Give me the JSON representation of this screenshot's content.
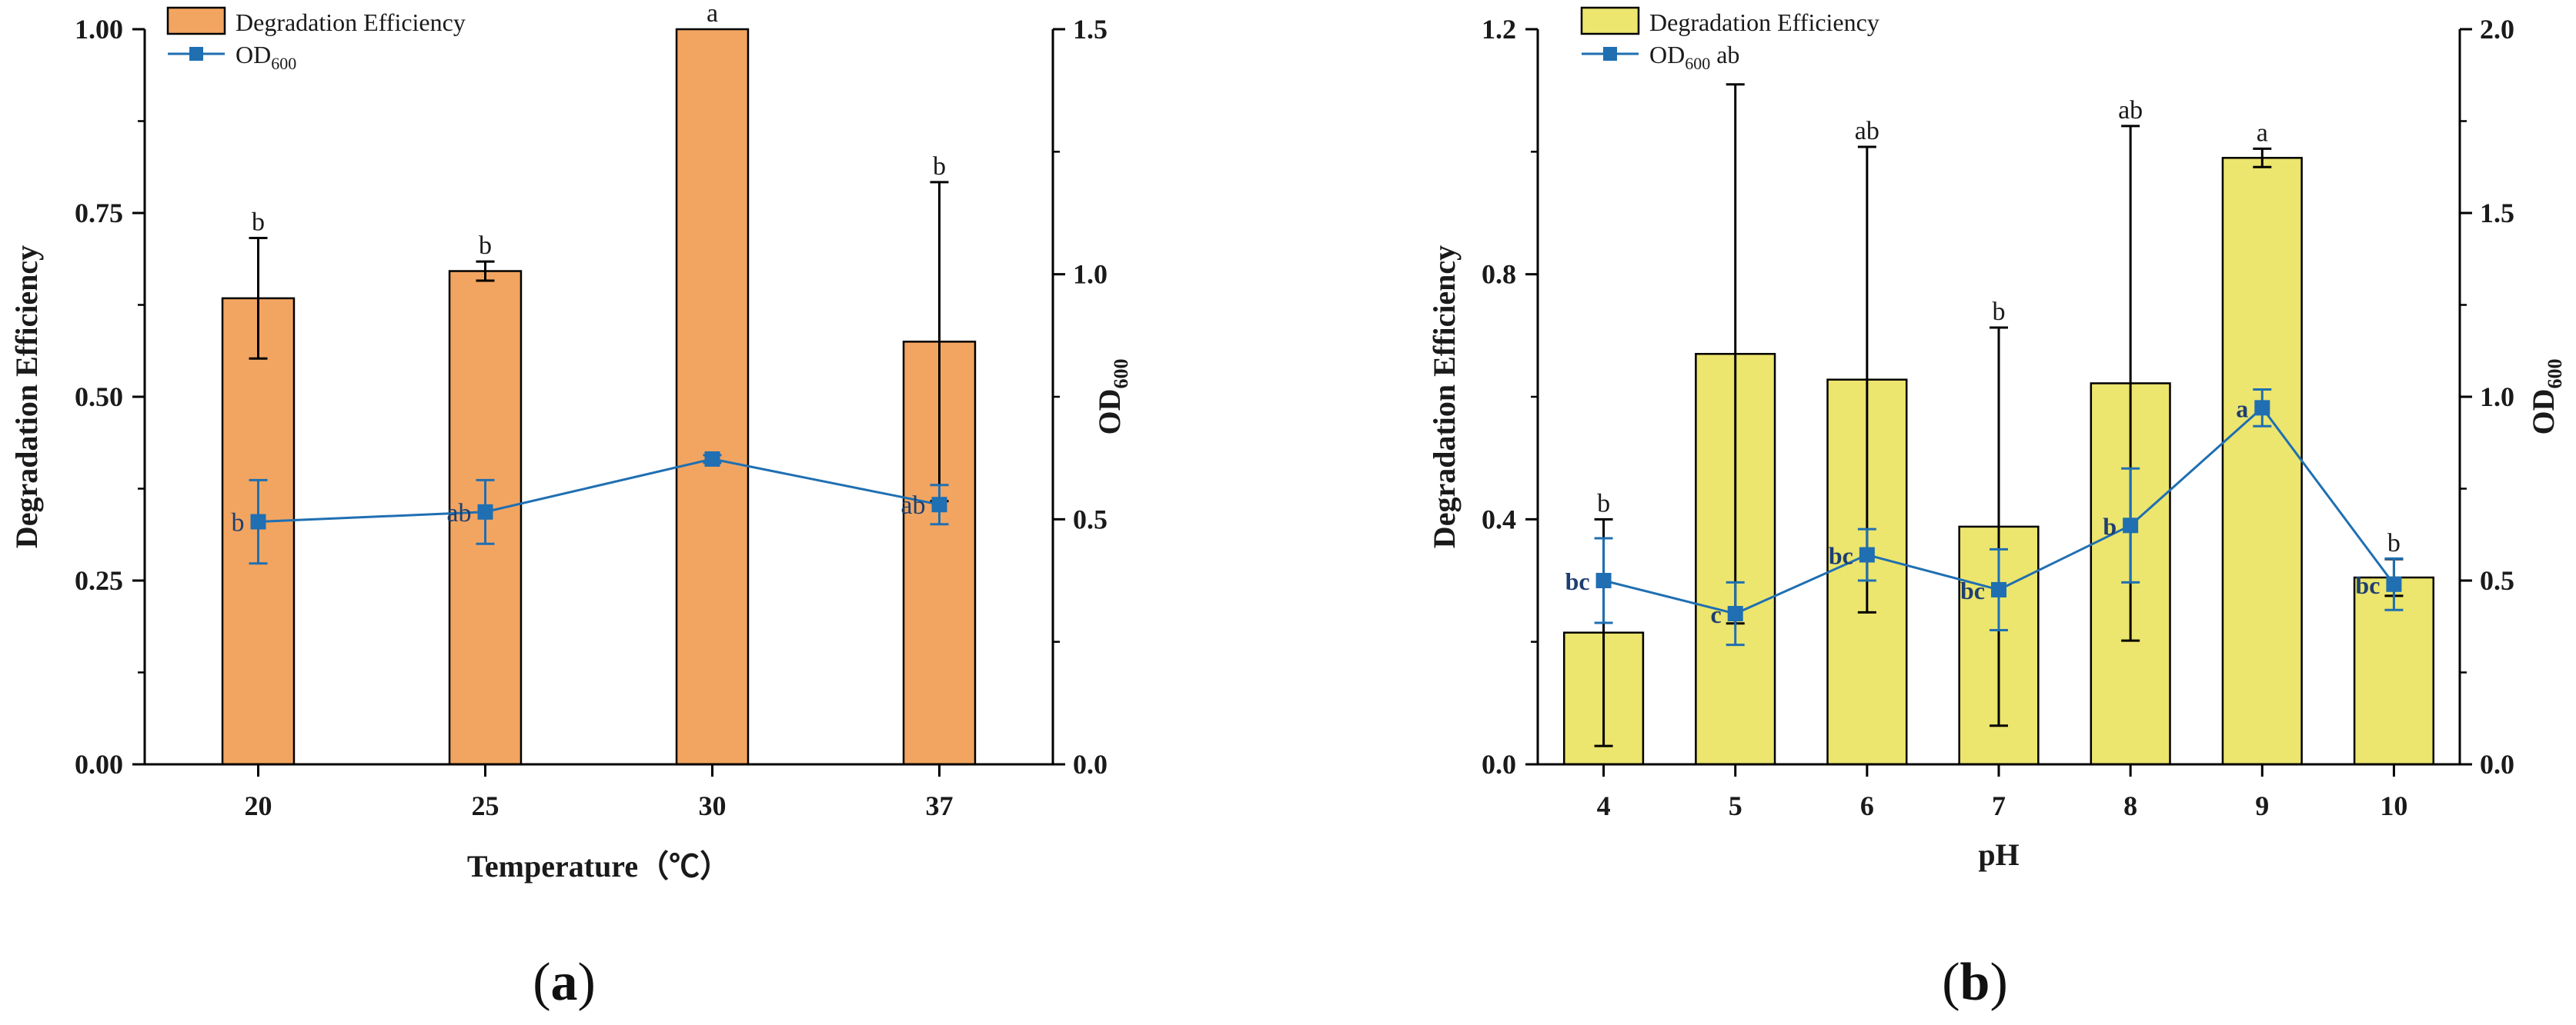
{
  "chart_data": [
    {
      "type": "bar",
      "panel_label": "a",
      "xlabel": "Temperature（℃）",
      "ylabel": "Degradation Efficiency",
      "y2label": "OD",
      "y2label_sub": "600",
      "categories": [
        "20",
        "25",
        "30",
        "37"
      ],
      "ylim": [
        0,
        1.0
      ],
      "yticks": [
        "0.00",
        "0.25",
        "0.50",
        "0.75",
        "1.00"
      ],
      "y2lim": [
        0,
        1.5
      ],
      "y2ticks": [
        "0.0",
        "0.5",
        "1.0",
        "1.5"
      ],
      "bar_color": "#f2a561",
      "line_color": "#1f6fb2",
      "legend": [
        {
          "label": "Degradation Efficiency",
          "kind": "bar"
        },
        {
          "label": "OD",
          "sub": "600",
          "kind": "line"
        }
      ],
      "legend_position": "top-left",
      "series": [
        {
          "name": "Degradation Efficiency",
          "axis": "left",
          "values": [
            0.634,
            0.671,
            1.0,
            0.575
          ],
          "errors": [
            0.082,
            0.013,
            0.0,
            0.217
          ],
          "letters": [
            "b",
            "b",
            "a",
            "b"
          ]
        },
        {
          "name": "OD600",
          "axis": "right",
          "values": [
            0.495,
            0.515,
            0.623,
            0.53
          ],
          "errors": [
            0.085,
            0.065,
            0.008,
            0.04
          ],
          "letters": [
            "b",
            "ab",
            "",
            "ab"
          ]
        }
      ]
    },
    {
      "type": "bar",
      "panel_label": "b",
      "xlabel": "pH",
      "ylabel": "Degradation Efficiency",
      "y2label": "OD",
      "y2label_sub": "600",
      "categories": [
        "4",
        "5",
        "6",
        "7",
        "8",
        "9",
        "10"
      ],
      "ylim": [
        0,
        1.2
      ],
      "yticks": [
        "0.0",
        "0.4",
        "0.8",
        "1.2"
      ],
      "y2lim": [
        0,
        2.0
      ],
      "y2ticks": [
        "0.0",
        "0.5",
        "1.0",
        "1.5",
        "2.0"
      ],
      "bar_color": "#ece56e",
      "line_color": "#1f6fb2",
      "legend": [
        {
          "label": "Degradation Efficiency",
          "kind": "bar"
        },
        {
          "label": "OD",
          "sub": "600",
          "suffix": " ab",
          "kind": "line"
        }
      ],
      "legend_position": "top-left",
      "series": [
        {
          "name": "Degradation Efficiency",
          "axis": "left",
          "values": [
            0.215,
            0.67,
            0.628,
            0.388,
            0.622,
            0.99,
            0.305
          ],
          "errors": [
            0.185,
            0.44,
            0.38,
            0.325,
            0.42,
            0.015,
            0.03
          ],
          "letters": [
            "b",
            "",
            "ab",
            "b",
            "ab",
            "a",
            "b"
          ]
        },
        {
          "name": "OD600",
          "axis": "right",
          "values": [
            0.5,
            0.41,
            0.57,
            0.475,
            0.65,
            0.97,
            0.49
          ],
          "errors": [
            0.115,
            0.085,
            0.07,
            0.11,
            0.155,
            0.05,
            0.07
          ],
          "letters": [
            "bc",
            "c",
            "bc",
            "bc",
            "b",
            "a",
            "bc"
          ]
        }
      ]
    }
  ]
}
